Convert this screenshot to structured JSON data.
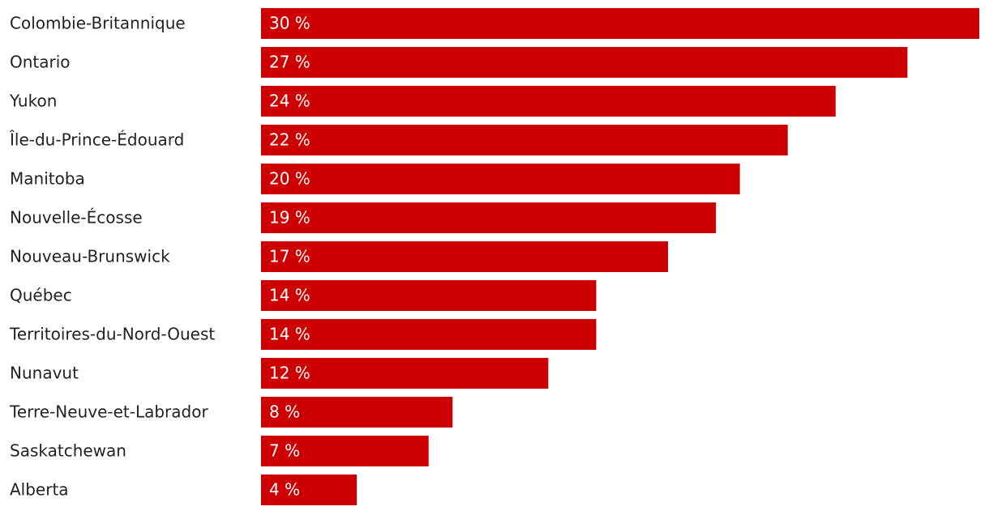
{
  "chart_data": {
    "type": "bar",
    "categories": [
      "Colombie-Britannique",
      "Ontario",
      "Yukon",
      "Île-du-Prince-Édouard",
      "Manitoba",
      "Nouvelle-Écosse",
      "Nouveau-Brunswick",
      "Québec",
      "Territoires-du-Nord-Ouest",
      "Nunavut",
      "Terre-Neuve-et-Labrador",
      "Saskatchewan",
      "Alberta"
    ],
    "values": [
      30,
      27,
      24,
      22,
      20,
      19,
      17,
      14,
      14,
      12,
      8,
      7,
      4
    ],
    "value_labels": [
      "30 %",
      "27 %",
      "24 %",
      "22 %",
      "20 %",
      "19 %",
      "17 %",
      "14 %",
      "14 %",
      "12 %",
      "8 %",
      "7 %",
      "4 %"
    ],
    "color": "#cc0000"
  }
}
